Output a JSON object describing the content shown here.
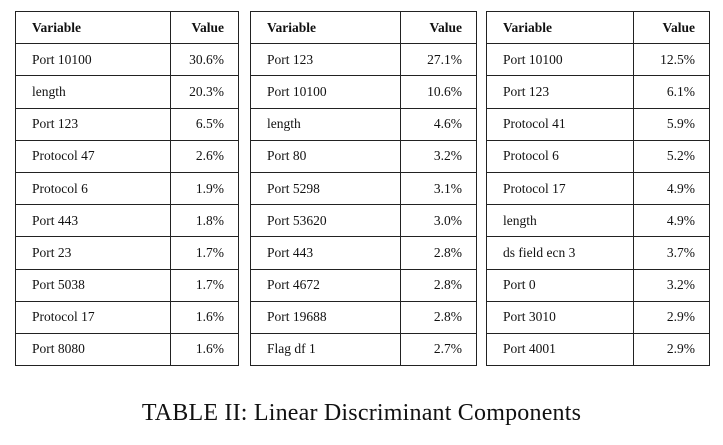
{
  "headers": {
    "variable": "Variable",
    "value": "Value"
  },
  "tables": [
    {
      "rows": [
        {
          "variable": "Port 10100",
          "value": "30.6%"
        },
        {
          "variable": "length",
          "value": "20.3%"
        },
        {
          "variable": "Port 123",
          "value": "6.5%"
        },
        {
          "variable": "Protocol 47",
          "value": "2.6%"
        },
        {
          "variable": "Protocol 6",
          "value": "1.9%"
        },
        {
          "variable": "Port 443",
          "value": "1.8%"
        },
        {
          "variable": "Port 23",
          "value": "1.7%"
        },
        {
          "variable": "Port 5038",
          "value": "1.7%"
        },
        {
          "variable": "Protocol 17",
          "value": "1.6%"
        },
        {
          "variable": "Port 8080",
          "value": "1.6%"
        }
      ]
    },
    {
      "rows": [
        {
          "variable": "Port 123",
          "value": "27.1%"
        },
        {
          "variable": "Port 10100",
          "value": "10.6%"
        },
        {
          "variable": "length",
          "value": "4.6%"
        },
        {
          "variable": "Port 80",
          "value": "3.2%"
        },
        {
          "variable": "Port 5298",
          "value": "3.1%"
        },
        {
          "variable": "Port 53620",
          "value": "3.0%"
        },
        {
          "variable": "Port 443",
          "value": "2.8%"
        },
        {
          "variable": "Port 4672",
          "value": "2.8%"
        },
        {
          "variable": "Port 19688",
          "value": "2.8%"
        },
        {
          "variable": "Flag df 1",
          "value": "2.7%"
        }
      ]
    },
    {
      "rows": [
        {
          "variable": "Port 10100",
          "value": "12.5%"
        },
        {
          "variable": "Port 123",
          "value": "6.1%"
        },
        {
          "variable": "Protocol 41",
          "value": "5.9%"
        },
        {
          "variable": "Protocol 6",
          "value": "5.2%"
        },
        {
          "variable": "Protocol 17",
          "value": "4.9%"
        },
        {
          "variable": "length",
          "value": "4.9%"
        },
        {
          "variable": "ds field ecn 3",
          "value": "3.7%"
        },
        {
          "variable": "Port 0",
          "value": "3.2%"
        },
        {
          "variable": "Port 3010",
          "value": "2.9%"
        },
        {
          "variable": "Port 4001",
          "value": "2.9%"
        }
      ]
    }
  ],
  "caption": "TABLE II: Linear Discriminant Components"
}
